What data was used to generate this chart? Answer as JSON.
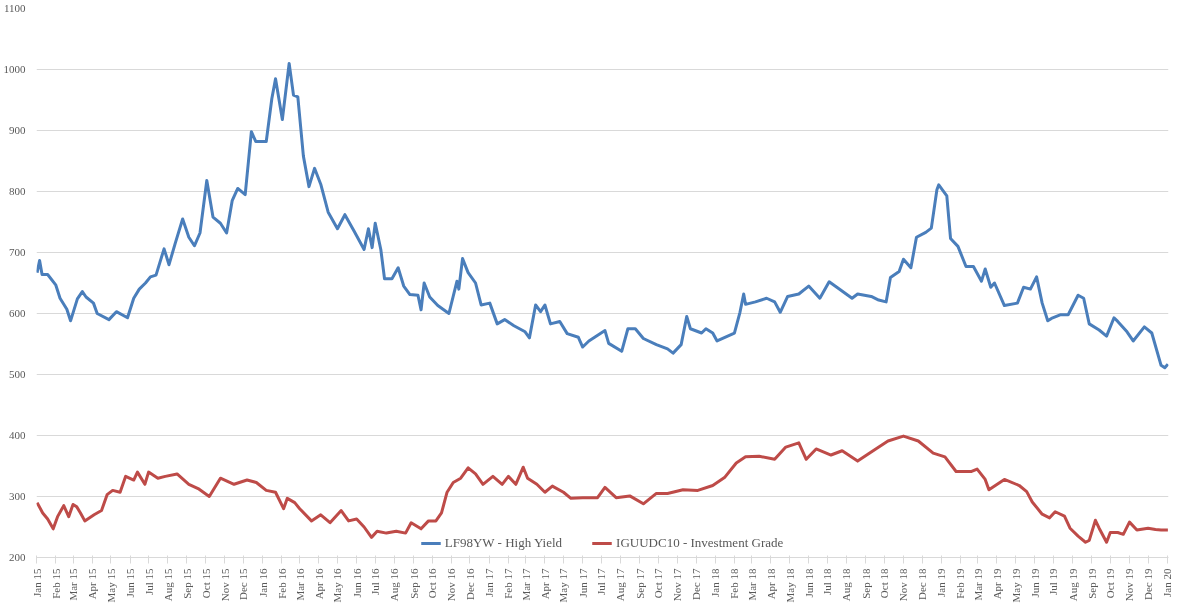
{
  "chart_data": {
    "type": "line",
    "legend": "bottom",
    "grid": "y",
    "line_style": "solid",
    "ylim": [
      200,
      1100
    ],
    "yticks": [
      200,
      300,
      400,
      500,
      600,
      700,
      800,
      900,
      1000,
      1100
    ],
    "xlim": [
      "2015-01-01",
      "2020-01-03"
    ],
    "xticks": [
      {
        "value": "2015-01-01",
        "label": "Jan 15"
      },
      {
        "value": "2015-02-01",
        "label": "Feb 15"
      },
      {
        "value": "2015-03-01",
        "label": "Mar 15"
      },
      {
        "value": "2015-04-01",
        "label": "Apr 15"
      },
      {
        "value": "2015-05-01",
        "label": "May 15"
      },
      {
        "value": "2015-06-01",
        "label": "Jun 15"
      },
      {
        "value": "2015-07-01",
        "label": "Jul 15"
      },
      {
        "value": "2015-08-01",
        "label": "Aug 15"
      },
      {
        "value": "2015-09-01",
        "label": "Sep 15"
      },
      {
        "value": "2015-10-01",
        "label": "Oct 15"
      },
      {
        "value": "2015-11-01",
        "label": "Nov 15"
      },
      {
        "value": "2015-12-01",
        "label": "Dec 15"
      },
      {
        "value": "2016-01-01",
        "label": "Jan 16"
      },
      {
        "value": "2016-02-01",
        "label": "Feb 16"
      },
      {
        "value": "2016-03-01",
        "label": "Mar 16"
      },
      {
        "value": "2016-04-01",
        "label": "Apr 16"
      },
      {
        "value": "2016-05-01",
        "label": "May 16"
      },
      {
        "value": "2016-06-01",
        "label": "Jun 16"
      },
      {
        "value": "2016-07-01",
        "label": "Jul 16"
      },
      {
        "value": "2016-08-01",
        "label": "Aug 16"
      },
      {
        "value": "2016-09-01",
        "label": "Sep 16"
      },
      {
        "value": "2016-10-01",
        "label": "Oct 16"
      },
      {
        "value": "2016-11-01",
        "label": "Nov 16"
      },
      {
        "value": "2016-12-01",
        "label": "Dec 16"
      },
      {
        "value": "2017-01-01",
        "label": "Jan 17"
      },
      {
        "value": "2017-02-01",
        "label": "Feb 17"
      },
      {
        "value": "2017-03-01",
        "label": "Mar 17"
      },
      {
        "value": "2017-04-01",
        "label": "Apr 17"
      },
      {
        "value": "2017-05-01",
        "label": "May 17"
      },
      {
        "value": "2017-06-01",
        "label": "Jun 17"
      },
      {
        "value": "2017-07-01",
        "label": "Jul 17"
      },
      {
        "value": "2017-08-01",
        "label": "Aug 17"
      },
      {
        "value": "2017-09-01",
        "label": "Sep 17"
      },
      {
        "value": "2017-10-01",
        "label": "Oct 17"
      },
      {
        "value": "2017-11-01",
        "label": "Nov 17"
      },
      {
        "value": "2017-12-01",
        "label": "Dec 17"
      },
      {
        "value": "2018-01-01",
        "label": "Jan 18"
      },
      {
        "value": "2018-02-01",
        "label": "Feb 18"
      },
      {
        "value": "2018-03-01",
        "label": "Mar 18"
      },
      {
        "value": "2018-04-01",
        "label": "Apr 18"
      },
      {
        "value": "2018-05-01",
        "label": "May 18"
      },
      {
        "value": "2018-06-01",
        "label": "Jun 18"
      },
      {
        "value": "2018-07-01",
        "label": "Jul 18"
      },
      {
        "value": "2018-08-01",
        "label": "Aug 18"
      },
      {
        "value": "2018-09-01",
        "label": "Sep 18"
      },
      {
        "value": "2018-10-01",
        "label": "Oct 18"
      },
      {
        "value": "2018-11-01",
        "label": "Nov 18"
      },
      {
        "value": "2018-12-01",
        "label": "Dec 18"
      },
      {
        "value": "2019-01-01",
        "label": "Jan 19"
      },
      {
        "value": "2019-02-01",
        "label": "Feb 19"
      },
      {
        "value": "2019-03-01",
        "label": "Mar 19"
      },
      {
        "value": "2019-04-01",
        "label": "Apr 19"
      },
      {
        "value": "2019-05-01",
        "label": "May 19"
      },
      {
        "value": "2019-06-01",
        "label": "Jun 19"
      },
      {
        "value": "2019-07-01",
        "label": "Jul 19"
      },
      {
        "value": "2019-08-01",
        "label": "Aug 19"
      },
      {
        "value": "2019-09-01",
        "label": "Sep 19"
      },
      {
        "value": "2019-10-01",
        "label": "Oct 19"
      },
      {
        "value": "2019-11-01",
        "label": "Nov 19"
      },
      {
        "value": "2019-12-01",
        "label": "Dec 19"
      },
      {
        "value": "2020-01-01",
        "label": "Jan 20"
      }
    ],
    "series": [
      {
        "name": "LF98YW - High Yield",
        "color": "#4a7ebb",
        "x": [
          "2015-01-02",
          "2015-01-06",
          "2015-01-10",
          "2015-01-19",
          "2015-02-01",
          "2015-02-08",
          "2015-02-19",
          "2015-02-25",
          "2015-03-08",
          "2015-03-16",
          "2015-03-22",
          "2015-04-03",
          "2015-04-09",
          "2015-04-28",
          "2015-05-10",
          "2015-05-28",
          "2015-06-07",
          "2015-06-16",
          "2015-06-26",
          "2015-07-04",
          "2015-07-13",
          "2015-07-26",
          "2015-08-03",
          "2015-08-13",
          "2015-08-25",
          "2015-09-04",
          "2015-09-13",
          "2015-09-22",
          "2015-10-03",
          "2015-10-13",
          "2015-10-25",
          "2015-11-04",
          "2015-11-13",
          "2015-11-22",
          "2015-12-04",
          "2015-12-14",
          "2015-12-21",
          "2016-01-07",
          "2016-01-16",
          "2016-01-22",
          "2016-02-02",
          "2016-02-13",
          "2016-02-20",
          "2016-02-27",
          "2016-03-07",
          "2016-03-16",
          "2016-03-25",
          "2016-04-04",
          "2016-04-16",
          "2016-05-01",
          "2016-05-13",
          "2016-05-28",
          "2016-06-13",
          "2016-06-20",
          "2016-06-26",
          "2016-07-01",
          "2016-07-10",
          "2016-07-16",
          "2016-07-28",
          "2016-08-07",
          "2016-08-16",
          "2016-08-26",
          "2016-09-08",
          "2016-09-13",
          "2016-09-18",
          "2016-09-27",
          "2016-10-10",
          "2016-10-28",
          "2016-11-10",
          "2016-11-13",
          "2016-11-19",
          "2016-11-28",
          "2016-12-10",
          "2016-12-19",
          "2017-01-02",
          "2017-01-14",
          "2017-01-26",
          "2017-02-10",
          "2017-02-28",
          "2017-03-07",
          "2017-03-17",
          "2017-03-25",
          "2017-04-01",
          "2017-04-10",
          "2017-04-25",
          "2017-05-07",
          "2017-05-25",
          "2017-06-01",
          "2017-06-11",
          "2017-07-07",
          "2017-07-13",
          "2017-08-03",
          "2017-08-13",
          "2017-08-25",
          "2017-09-07",
          "2017-09-28",
          "2017-10-16",
          "2017-10-25",
          "2017-11-07",
          "2017-11-16",
          "2017-11-22",
          "2017-12-10",
          "2017-12-17",
          "2017-12-28",
          "2018-01-04",
          "2018-02-01",
          "2018-02-10",
          "2018-02-16",
          "2018-02-19",
          "2018-03-07",
          "2018-03-25",
          "2018-04-07",
          "2018-04-16",
          "2018-04-28",
          "2018-05-16",
          "2018-06-01",
          "2018-06-19",
          "2018-07-04",
          "2018-07-22",
          "2018-08-10",
          "2018-08-19",
          "2018-09-10",
          "2018-09-22",
          "2018-10-04",
          "2018-10-11",
          "2018-10-25",
          "2018-11-01",
          "2018-11-13",
          "2018-11-22",
          "2018-12-07",
          "2018-12-16",
          "2018-12-25",
          "2018-12-28",
          "2019-01-10",
          "2019-01-16",
          "2019-01-28",
          "2019-02-10",
          "2019-02-22",
          "2019-03-07",
          "2019-03-13",
          "2019-03-22",
          "2019-03-28",
          "2019-04-13",
          "2019-05-04",
          "2019-05-14",
          "2019-05-25",
          "2019-06-04",
          "2019-06-13",
          "2019-06-22",
          "2019-06-28",
          "2019-07-13",
          "2019-07-25",
          "2019-08-10",
          "2019-08-19",
          "2019-08-28",
          "2019-09-13",
          "2019-09-25",
          "2019-10-07",
          "2019-10-13",
          "2019-10-28",
          "2019-11-07",
          "2019-11-25",
          "2019-12-07",
          "2019-12-22",
          "2019-12-28",
          "2020-01-02"
        ],
        "values": [
          667,
          687,
          664,
          664,
          647,
          625,
          607,
          588,
          624,
          636,
          627,
          617,
          600,
          590,
          603,
          593,
          625,
          640,
          650,
          660,
          663,
          706,
          680,
          715,
          755,
          725,
          711,
          732,
          818,
          758,
          748,
          732,
          785,
          805,
          795,
          898,
          882,
          882,
          952,
          985,
          918,
          1010,
          958,
          955,
          858,
          808,
          838,
          812,
          766,
          739,
          762,
          735,
          705,
          739,
          708,
          748,
          705,
          657,
          657,
          675,
          645,
          631,
          630,
          606,
          650,
          627,
          613,
          600,
          653,
          640,
          690,
          667,
          650,
          614,
          617,
          583,
          590,
          580,
          570,
          560,
          614,
          603,
          614,
          583,
          587,
          567,
          561,
          545,
          555,
          572,
          551,
          538,
          575,
          575,
          559,
          549,
          542,
          535,
          549,
          595,
          575,
          568,
          575,
          568,
          555,
          568,
          602,
          632,
          615,
          619,
          625,
          619,
          602,
          628,
          632,
          645,
          625,
          652,
          639,
          625,
          632,
          628,
          622,
          619,
          659,
          669,
          689,
          675,
          725,
          733,
          740,
          803,
          811,
          793,
          723,
          710,
          677,
          677,
          653,
          673,
          643,
          650,
          613,
          617,
          643,
          640,
          660,
          617,
          588,
          592,
          598,
          598,
          630,
          625,
          583,
          573,
          563,
          593,
          587,
          570,
          555,
          578,
          568,
          515,
          511,
          517
        ]
      },
      {
        "name": "IGUUDC10 - Investment Grade",
        "color": "#be4b48",
        "x": [
          "2015-01-02",
          "2015-01-11",
          "2015-01-19",
          "2015-01-28",
          "2015-02-04",
          "2015-02-14",
          "2015-02-22",
          "2015-03-01",
          "2015-03-07",
          "2015-03-13",
          "2015-03-20",
          "2015-04-04",
          "2015-04-16",
          "2015-04-25",
          "2015-05-04",
          "2015-05-16",
          "2015-05-25",
          "2015-06-07",
          "2015-06-13",
          "2015-06-25",
          "2015-07-01",
          "2015-07-16",
          "2015-07-28",
          "2015-08-16",
          "2015-09-04",
          "2015-09-19",
          "2015-10-07",
          "2015-10-25",
          "2015-11-16",
          "2015-12-07",
          "2015-12-22",
          "2016-01-07",
          "2016-01-22",
          "2016-02-04",
          "2016-02-10",
          "2016-02-22",
          "2016-03-01",
          "2016-03-20",
          "2016-04-04",
          "2016-04-19",
          "2016-05-07",
          "2016-05-19",
          "2016-06-01",
          "2016-06-13",
          "2016-06-25",
          "2016-07-04",
          "2016-07-19",
          "2016-08-04",
          "2016-08-19",
          "2016-08-28",
          "2016-09-13",
          "2016-09-25",
          "2016-10-07",
          "2016-10-16",
          "2016-10-25",
          "2016-11-04",
          "2016-11-16",
          "2016-11-28",
          "2016-12-10",
          "2016-12-22",
          "2017-01-07",
          "2017-01-22",
          "2017-02-01",
          "2017-02-13",
          "2017-02-25",
          "2017-03-04",
          "2017-03-19",
          "2017-04-01",
          "2017-04-13",
          "2017-05-01",
          "2017-05-13",
          "2017-06-01",
          "2017-06-25",
          "2017-07-07",
          "2017-07-25",
          "2017-08-16",
          "2017-09-07",
          "2017-09-28",
          "2017-10-16",
          "2017-11-10",
          "2017-12-04",
          "2017-12-28",
          "2018-01-16",
          "2018-02-04",
          "2018-02-19",
          "2018-03-13",
          "2018-04-07",
          "2018-04-25",
          "2018-05-16",
          "2018-05-28",
          "2018-06-13",
          "2018-07-07",
          "2018-07-25",
          "2018-08-19",
          "2018-09-13",
          "2018-10-07",
          "2018-11-01",
          "2018-11-25",
          "2018-12-19",
          "2019-01-07",
          "2019-01-25",
          "2019-02-19",
          "2019-02-28",
          "2019-03-13",
          "2019-03-19",
          "2019-04-13",
          "2019-05-07",
          "2019-05-19",
          "2019-05-28",
          "2019-06-13",
          "2019-06-25",
          "2019-07-04",
          "2019-07-19",
          "2019-07-28",
          "2019-08-10",
          "2019-08-22",
          "2019-08-28",
          "2019-09-07",
          "2019-09-13",
          "2019-09-25",
          "2019-10-01",
          "2019-10-13",
          "2019-10-22",
          "2019-11-01",
          "2019-11-13",
          "2019-12-01",
          "2019-12-13",
          "2019-12-22",
          "2020-01-02"
        ],
        "values": [
          290,
          273,
          263,
          247,
          267,
          285,
          267,
          287,
          283,
          273,
          260,
          270,
          277,
          303,
          310,
          307,
          333,
          327,
          340,
          320,
          340,
          330,
          333,
          337,
          320,
          313,
          300,
          330,
          320,
          327,
          323,
          310,
          307,
          280,
          297,
          290,
          280,
          260,
          270,
          257,
          277,
          260,
          263,
          250,
          233,
          243,
          240,
          243,
          240,
          257,
          247,
          260,
          260,
          273,
          307,
          323,
          330,
          347,
          337,
          320,
          333,
          320,
          333,
          320,
          348,
          330,
          320,
          307,
          317,
          307,
          297,
          298,
          298,
          315,
          298,
          301,
          288,
          305,
          305,
          311,
          310,
          318,
          331,
          355,
          365,
          366,
          361,
          381,
          388,
          361,
          378,
          368,
          375,
          358,
          375,
          391,
          399,
          391,
          371,
          365,
          341,
          341,
          345,
          328,
          311,
          328,
          318,
          308,
          291,
          271,
          265,
          275,
          268,
          248,
          235,
          225,
          228,
          261,
          248,
          225,
          241,
          241,
          238,
          258,
          245,
          248,
          246,
          245,
          245
        ]
      }
    ]
  }
}
